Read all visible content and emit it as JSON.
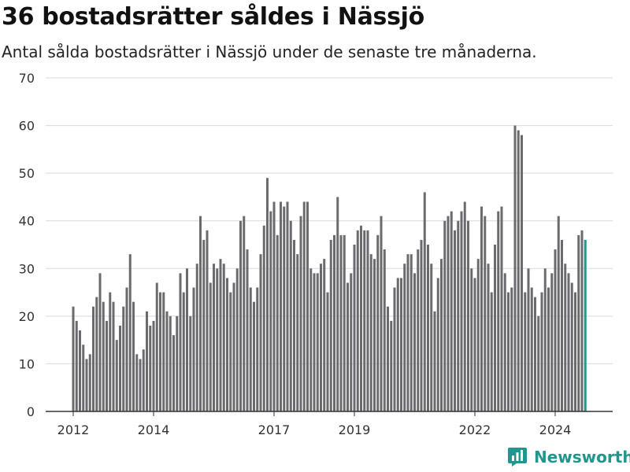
{
  "title": "36 bostadsrätter såldes i Nässjö",
  "subtitle": "Antal sålda bostadsrätter i Nässjö under de senaste tre månaderna.",
  "logo": {
    "text": "Newsworthy"
  },
  "colors": {
    "bar": "#6b6b6f",
    "highlight": "#20968f",
    "grid": "#d9d9d9",
    "axis": "#333333",
    "brand": "#20968f"
  },
  "chart_data": {
    "type": "bar",
    "title": "36 bostadsrätter såldes i Nässjö",
    "subtitle": "Antal sålda bostadsrätter i Nässjö under de senaste tre månaderna.",
    "xlabel": "",
    "ylabel": "",
    "ylim": [
      0,
      70
    ],
    "yticks": [
      0,
      10,
      20,
      30,
      40,
      50,
      60,
      70
    ],
    "xticks": [
      {
        "label": "2012",
        "index": 0
      },
      {
        "label": "2014",
        "index": 24
      },
      {
        "label": "2017",
        "index": 60
      },
      {
        "label": "2019",
        "index": 84
      },
      {
        "label": "2022",
        "index": 120
      },
      {
        "label": "2024",
        "index": 144
      }
    ],
    "grid": true,
    "annotation": {
      "label": "36",
      "index": 155
    },
    "values": [
      22,
      19,
      17,
      14,
      11,
      12,
      22,
      24,
      29,
      23,
      19,
      25,
      23,
      15,
      18,
      22,
      26,
      33,
      23,
      12,
      11,
      13,
      21,
      18,
      19,
      27,
      25,
      25,
      21,
      20,
      16,
      20,
      29,
      25,
      30,
      20,
      26,
      31,
      41,
      36,
      38,
      27,
      31,
      30,
      32,
      31,
      28,
      25,
      27,
      30,
      40,
      41,
      34,
      26,
      23,
      26,
      33,
      39,
      49,
      42,
      44,
      37,
      44,
      43,
      44,
      40,
      36,
      33,
      41,
      44,
      44,
      30,
      29,
      29,
      31,
      32,
      25,
      36,
      37,
      45,
      37,
      37,
      27,
      29,
      35,
      38,
      39,
      38,
      38,
      33,
      32,
      37,
      41,
      34,
      22,
      19,
      26,
      28,
      28,
      31,
      33,
      33,
      29,
      34,
      36,
      46,
      35,
      31,
      21,
      28,
      32,
      40,
      41,
      42,
      38,
      40,
      42,
      44,
      40,
      30,
      28,
      32,
      43,
      41,
      31,
      25,
      35,
      42,
      43,
      29,
      25,
      26,
      60,
      59,
      58,
      25,
      30,
      26,
      24,
      20,
      25,
      30,
      26,
      29,
      34,
      41,
      36,
      31,
      29,
      27,
      25,
      37,
      38,
      36
    ]
  }
}
